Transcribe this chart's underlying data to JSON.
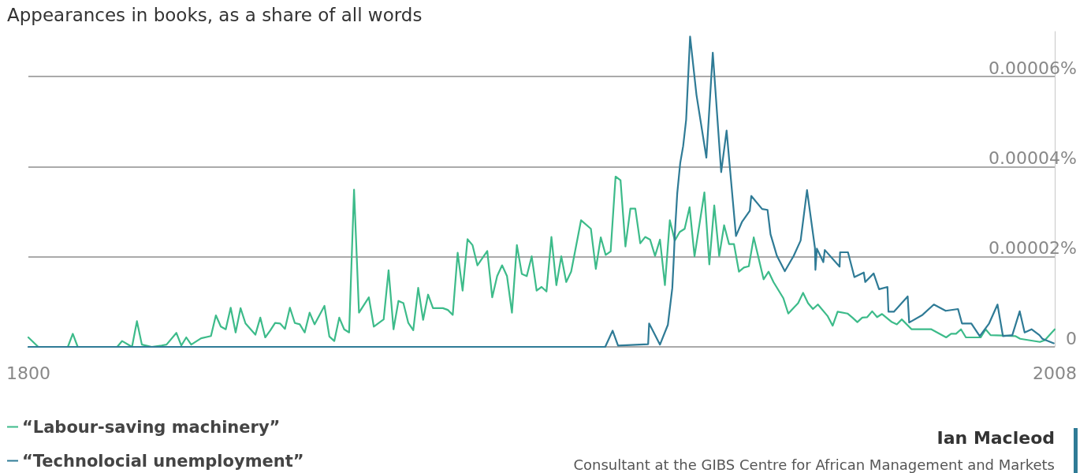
{
  "chart_data": {
    "type": "line",
    "title": "Appearances in books, as a share of all words",
    "xlim": [
      1800,
      2008
    ],
    "xticks": [
      1800,
      2008
    ],
    "ylim": [
      0,
      7e-05
    ],
    "yticks": [
      {
        "value": 0,
        "label": "0"
      },
      {
        "value": 2e-05,
        "label": "0.00002%"
      },
      {
        "value": 4e-05,
        "label": "0.00004%"
      },
      {
        "value": 6e-05,
        "label": "0.00006%"
      }
    ],
    "grid": "y",
    "legend": "bottom left",
    "marker": "none",
    "line_style": "solid",
    "annotations": [
      "Ian Macleod",
      "Consultant at the GIBS Centre for African Management and Markets"
    ],
    "series": [
      {
        "name": "“Labour-saving machinery”",
        "color": "#3dbb8a",
        "x": [
          1800,
          1802,
          1808,
          1809,
          1810,
          1818,
          1819,
          1821,
          1822,
          1823,
          1825,
          1827,
          1828,
          1830,
          1831,
          1832,
          1833,
          1835,
          1837,
          1838,
          1839,
          1840,
          1841,
          1842,
          1843,
          1844,
          1846,
          1847,
          1848,
          1849,
          1850,
          1851,
          1852,
          1853,
          1854,
          1855,
          1856,
          1857,
          1858,
          1860,
          1861,
          1862,
          1863,
          1864,
          1865,
          1866,
          1867,
          1869,
          1870,
          1872,
          1873,
          1874,
          1875,
          1876,
          1877,
          1878,
          1879,
          1880,
          1881,
          1882,
          1884,
          1885,
          1886,
          1887,
          1888,
          1889,
          1890,
          1891,
          1893,
          1894,
          1895,
          1896,
          1897,
          1898,
          1899,
          1900,
          1901,
          1902,
          1903,
          1904,
          1905,
          1906,
          1907,
          1908,
          1909,
          1910,
          1912,
          1914,
          1915,
          1916,
          1917,
          1918,
          1919,
          1920,
          1921,
          1922,
          1923,
          1924,
          1925,
          1926,
          1927,
          1928,
          1929,
          1930,
          1931,
          1932,
          1933,
          1934,
          1935,
          1937,
          1938,
          1939,
          1940,
          1941,
          1942,
          1943,
          1944,
          1945,
          1946,
          1947,
          1949,
          1950,
          1951,
          1953,
          1954,
          1956,
          1957,
          1958,
          1959,
          1960,
          1962,
          1963,
          1964,
          1966,
          1967,
          1968,
          1969,
          1970,
          1971,
          1972,
          1973,
          1975,
          1976,
          1977,
          1979,
          1983,
          1986,
          1987,
          1988,
          1989,
          1990,
          1993,
          1994,
          1995,
          2000,
          2001,
          2005,
          2006,
          2008
        ],
        "values": [
          2.1e-06,
          0,
          0,
          2.9e-06,
          0,
          0,
          1.3e-06,
          0,
          5.7e-06,
          5e-07,
          0,
          3e-07,
          5e-07,
          3.1e-06,
          3e-07,
          2.1e-06,
          5e-07,
          1.9e-06,
          2.4e-06,
          7e-06,
          4.5e-06,
          3.9e-06,
          8.7e-06,
          3.2e-06,
          8.6e-06,
          5.2e-06,
          2.7e-06,
          6.5e-06,
          2.1e-06,
          3.6e-06,
          5.3e-06,
          5.2e-06,
          4e-06,
          8.7e-06,
          5.3e-06,
          5e-06,
          3.2e-06,
          7.6e-06,
          5e-06,
          9.1e-06,
          2.3e-06,
          1.3e-06,
          6.5e-06,
          3.9e-06,
          3.2e-06,
          3.49e-05,
          7.6e-06,
          1.1e-05,
          4.5e-06,
          6.1e-06,
          1.7e-05,
          3.9e-06,
          1.02e-05,
          9.7e-06,
          5.3e-06,
          3.7e-06,
          1.31e-05,
          6e-06,
          1.16e-05,
          8.6e-06,
          8.6e-06,
          8.2e-06,
          7.1e-06,
          2.09e-05,
          1.25e-05,
          2.39e-05,
          2.26e-05,
          1.81e-05,
          2.13e-05,
          1.1e-05,
          1.57e-05,
          1.81e-05,
          1.57e-05,
          7.6e-06,
          2.26e-05,
          1.62e-05,
          1.57e-05,
          2.01e-05,
          1.25e-05,
          1.33e-05,
          1.23e-05,
          2.44e-05,
          1.37e-05,
          2.01e-05,
          1.44e-05,
          1.67e-05,
          2.81e-05,
          2.62e-05,
          1.73e-05,
          2.43e-05,
          2.04e-05,
          2.12e-05,
          3.78e-05,
          3.7e-05,
          2.23e-05,
          3.07e-05,
          3.07e-05,
          2.3e-05,
          2.44e-05,
          2.38e-05,
          2.02e-05,
          2.38e-05,
          1.37e-05,
          2.81e-05,
          2.36e-05,
          2.55e-05,
          2.62e-05,
          3.1e-05,
          2.01e-05,
          3.43e-05,
          1.83e-05,
          3.14e-05,
          2.02e-05,
          2.7e-05,
          2.28e-05,
          2.28e-05,
          1.67e-05,
          1.76e-05,
          1.79e-05,
          2.43e-05,
          1.5e-05,
          1.67e-05,
          1.44e-05,
          1.08e-05,
          7.4e-06,
          9.7e-06,
          1.2e-05,
          9.7e-06,
          8.4e-06,
          9.4e-06,
          6.8e-06,
          4.7e-06,
          7.8e-06,
          7.4e-06,
          6.5e-06,
          5.5e-06,
          6.5e-06,
          6.6e-06,
          7.9e-06,
          6.6e-06,
          7.3e-06,
          5.5e-06,
          5e-06,
          6.1e-06,
          3.9e-06,
          3.9e-06,
          2.1e-06,
          2.9e-06,
          2.9e-06,
          3.9e-06,
          2.1e-06,
          2.1e-06,
          3.9e-06,
          2.6e-06,
          2.4e-06,
          1.8e-06,
          1.1e-06,
          1.5e-06,
          3.9e-06
        ]
      },
      {
        "name": "“Technolocial unemployment”",
        "color": "#2f7b96",
        "x": [
          1800,
          1916.9,
          1918.4,
          1919.5,
          1925.6,
          1925.8,
          1928,
          1929.6,
          1930.5,
          1930.8,
          1931,
          1931.5,
          1932.1,
          1932.7,
          1933.3,
          1934.1,
          1935.4,
          1937.4,
          1938.7,
          1940.4,
          1941.5,
          1943.4,
          1944.6,
          1946.2,
          1946.5,
          1948.7,
          1949.8,
          1950.4,
          1951.7,
          1953.3,
          1955.1,
          1956.5,
          1957.8,
          1959.4,
          1959.5,
          1959.8,
          1961.1,
          1961.4,
          1964.4,
          1964.5,
          1966.1,
          1967.4,
          1969.3,
          1969.6,
          1971.3,
          1972.4,
          1974.1,
          1974.3,
          1975.4,
          1978.2,
          1978.5,
          1981.2,
          1983.5,
          1985.9,
          1988.4,
          1989.2,
          1991.1,
          1992.8,
          1994.7,
          1996.4,
          1997.5,
          1999.4,
          2000.9,
          2001.9,
          2003.3,
          2004.9,
          2005.5,
          2007.8
        ],
        "values": [
          0,
          0,
          3.6e-06,
          3e-07,
          6e-07,
          5.2e-06,
          5e-07,
          4.9e-06,
          1.31e-05,
          1.97e-05,
          2.49e-05,
          3.41e-05,
          4.08e-05,
          4.46e-05,
          5.04e-05,
          6.89e-05,
          5.59e-05,
          4.2e-05,
          6.53e-05,
          3.88e-05,
          4.8e-05,
          2.46e-05,
          2.77e-05,
          3.02e-05,
          3.35e-05,
          3.06e-05,
          3.04e-05,
          2.5e-05,
          2.02e-05,
          1.68e-05,
          2.02e-05,
          2.36e-05,
          3.48e-05,
          2.2e-05,
          1.71e-05,
          2.18e-05,
          1.88e-05,
          2.15e-05,
          1.78e-05,
          2.1e-05,
          2.1e-05,
          1.55e-05,
          1.65e-05,
          1.44e-05,
          1.63e-05,
          1.28e-05,
          1.33e-05,
          7.8e-06,
          7.8e-06,
          1.12e-05,
          5.4e-06,
          7.1e-06,
          9.4e-06,
          8e-06,
          8.4e-06,
          5.2e-06,
          5.2e-06,
          2.4e-06,
          5.2e-06,
          9.4e-06,
          2.4e-06,
          2.6e-06,
          7.9e-06,
          3.2e-06,
          3.9e-06,
          2.6e-06,
          1.8e-06,
          8e-07
        ]
      }
    ]
  }
}
